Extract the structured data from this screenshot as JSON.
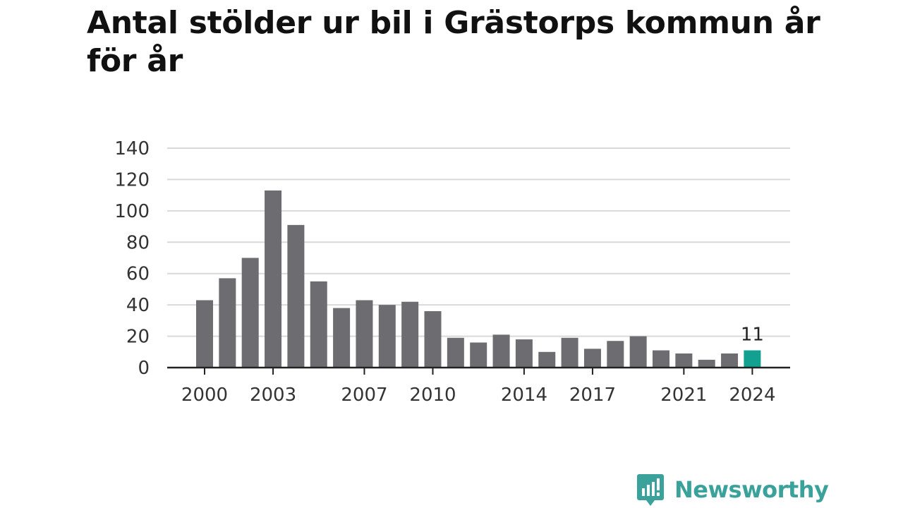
{
  "title": "Antal stölder ur bil i Grästorps kommun år för år",
  "brand": {
    "name": "Newsworthy",
    "icon": "newsworthy-logo-icon",
    "color": "#3aa29b"
  },
  "chart_data": {
    "type": "bar",
    "title": "Antal stölder ur bil i Grästorps kommun år för år",
    "xlabel": "",
    "ylabel": "",
    "categories": [
      2000,
      2001,
      2002,
      2003,
      2004,
      2005,
      2006,
      2007,
      2008,
      2009,
      2010,
      2011,
      2012,
      2013,
      2014,
      2015,
      2016,
      2017,
      2018,
      2019,
      2020,
      2021,
      2022,
      2023,
      2024
    ],
    "values": [
      43,
      57,
      70,
      113,
      91,
      55,
      38,
      43,
      40,
      42,
      36,
      19,
      16,
      21,
      18,
      10,
      19,
      12,
      17,
      20,
      11,
      9,
      5,
      9,
      11
    ],
    "x_tick_labels": [
      "2000",
      "2003",
      "2007",
      "2010",
      "2014",
      "2017",
      "2021",
      "2024"
    ],
    "y_ticks": [
      0,
      20,
      40,
      60,
      80,
      100,
      120,
      140
    ],
    "ylim": [
      0,
      140
    ],
    "grid": true,
    "bar_color": "#6d6c70",
    "highlight_color": "#12a090",
    "highlight_category": 2024,
    "annotations": [
      {
        "category": 2024,
        "text": "11"
      }
    ]
  }
}
